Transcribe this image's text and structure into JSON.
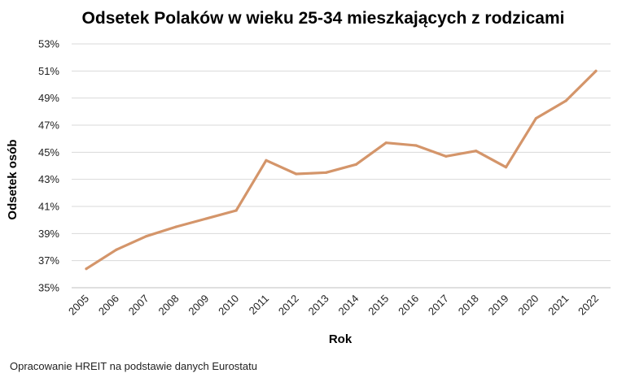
{
  "chart_data": {
    "type": "line",
    "title": "Odsetek Polaków w wieku 25-34 mieszkających z rodzicami",
    "xlabel": "Rok",
    "ylabel": "Odsetek osób",
    "x": [
      "2005",
      "2006",
      "2007",
      "2008",
      "2009",
      "2010",
      "2011",
      "2012",
      "2013",
      "2014",
      "2015",
      "2016",
      "2017",
      "2018",
      "2019",
      "2020",
      "2021",
      "2022"
    ],
    "y_ticks": [
      "35%",
      "37%",
      "39%",
      "41%",
      "43%",
      "45%",
      "47%",
      "49%",
      "51%",
      "53%"
    ],
    "ylim": [
      35,
      53
    ],
    "y_unit": "%",
    "series": [
      {
        "color": "#d4956a",
        "values": [
          36.4,
          37.8,
          38.8,
          39.5,
          40.1,
          40.7,
          44.4,
          43.4,
          43.5,
          44.1,
          45.7,
          45.5,
          44.7,
          45.1,
          43.9,
          47.5,
          48.8,
          51.0
        ]
      }
    ],
    "grid": true,
    "legend": "none"
  },
  "source_note": "Opracowanie HREIT na podstawie danych Eurostatu"
}
